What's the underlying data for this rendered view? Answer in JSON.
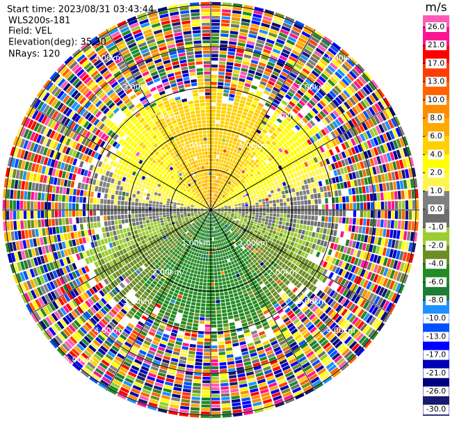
{
  "header": {
    "start_time": "Start time: 2023/08/31 03:43:44",
    "instrument": "WLS200s-181",
    "field": "Field: VEL",
    "elevation": "Elevation(deg): 35.30",
    "nrays": "NRays: 120"
  },
  "range_labels": [
    "1.00km",
    "2.00km",
    "3.00km",
    "4.00km",
    "5.00km"
  ],
  "colorbar": {
    "unit": "m/s",
    "ticks": [
      {
        "value": 26,
        "label": "26.0"
      },
      {
        "value": 21,
        "label": "21.0"
      },
      {
        "value": 17,
        "label": "17.0"
      },
      {
        "value": 13,
        "label": "13.0"
      },
      {
        "value": 10,
        "label": "10.0"
      },
      {
        "value": 8,
        "label": "8.0"
      },
      {
        "value": 6,
        "label": "6.0"
      },
      {
        "value": 4,
        "label": "4.0"
      },
      {
        "value": 2,
        "label": "2.0"
      },
      {
        "value": 1,
        "label": "1.0"
      },
      {
        "value": 0,
        "label": "0.0"
      },
      {
        "value": -1,
        "label": "-1.0"
      },
      {
        "value": -2,
        "label": "-2.0"
      },
      {
        "value": -4,
        "label": "-4.0"
      },
      {
        "value": -6,
        "label": "-6.0"
      },
      {
        "value": -8,
        "label": "-8.0"
      },
      {
        "value": -10,
        "label": "-10.0"
      },
      {
        "value": -13,
        "label": "-13.0"
      },
      {
        "value": -17,
        "label": "-17.0"
      },
      {
        "value": -21,
        "label": "-21.0"
      },
      {
        "value": -26,
        "label": "-26.0"
      },
      {
        "value": -30,
        "label": "-30.0"
      }
    ],
    "colors": [
      "#ff5ab4",
      "#ff1493",
      "#ff0000",
      "#ff3c00",
      "#ff6400",
      "#ff8c00",
      "#ffaa00",
      "#ffd000",
      "#ffff00",
      "#fff44f",
      "#808080",
      "#6e6e6e",
      "#9acd32",
      "#6b8e23",
      "#228b22",
      "#1e7d32",
      "#1e90ff",
      "#0050ff",
      "#0000ff",
      "#0000b4",
      "#000080",
      "#191970"
    ]
  }
}
